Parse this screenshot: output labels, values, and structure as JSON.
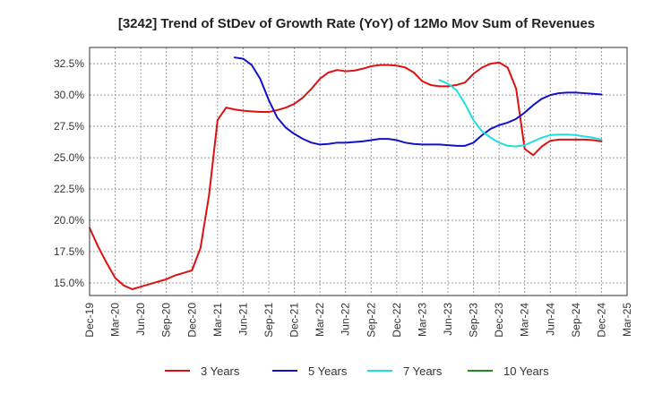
{
  "chart_data": {
    "type": "line",
    "title": "[3242]  Trend of StDev of Growth Rate (YoY) of 12Mo Mov Sum of Revenues",
    "xlabel": "",
    "ylabel": "",
    "ylim": [
      14.0,
      33.8
    ],
    "y_ticks": [
      "15.0%",
      "17.5%",
      "20.0%",
      "22.5%",
      "25.0%",
      "27.5%",
      "30.0%",
      "32.5%"
    ],
    "y_tick_values": [
      15.0,
      17.5,
      20.0,
      22.5,
      25.0,
      27.5,
      30.0,
      32.5
    ],
    "x_ticks": [
      "Dec-19",
      "Mar-20",
      "Jun-20",
      "Sep-20",
      "Dec-20",
      "Mar-21",
      "Jun-21",
      "Sep-21",
      "Dec-21",
      "Mar-22",
      "Jun-22",
      "Sep-22",
      "Dec-22",
      "Mar-23",
      "Jun-23",
      "Sep-23",
      "Dec-23",
      "Mar-24",
      "Jun-24",
      "Sep-24",
      "Dec-24",
      "Mar-25"
    ],
    "grid": true,
    "legend_position": "bottom",
    "colors": {
      "3 Years": "#dd1111",
      "5 Years": "#1111cc",
      "7 Years": "#22dddd",
      "10 Years": "#228822",
      "grid": "#999999",
      "axis": "#333333"
    },
    "series": [
      {
        "name": "3 Years",
        "x": [
          "Dec-19",
          "Jan-20",
          "Feb-20",
          "Mar-20",
          "Apr-20",
          "May-20",
          "Jun-20",
          "Jul-20",
          "Aug-20",
          "Sep-20",
          "Oct-20",
          "Nov-20",
          "Dec-20",
          "Jan-21",
          "Feb-21",
          "Mar-21",
          "Apr-21",
          "May-21",
          "Jun-21",
          "Jul-21",
          "Aug-21",
          "Sep-21",
          "Oct-21",
          "Nov-21",
          "Dec-21",
          "Jan-22",
          "Feb-22",
          "Mar-22",
          "Apr-22",
          "May-22",
          "Jun-22",
          "Jul-22",
          "Aug-22",
          "Sep-22",
          "Oct-22",
          "Nov-22",
          "Dec-22",
          "Jan-23",
          "Feb-23",
          "Mar-23",
          "Apr-23",
          "May-23",
          "Jun-23",
          "Jul-23",
          "Aug-23",
          "Sep-23",
          "Oct-23",
          "Nov-23",
          "Dec-23",
          "Jan-24",
          "Feb-24",
          "Mar-24",
          "Apr-24",
          "May-24",
          "Jun-24",
          "Jul-24",
          "Aug-24",
          "Sep-24",
          "Oct-24",
          "Nov-24",
          "Dec-24"
        ],
        "values": [
          19.4,
          17.9,
          16.6,
          15.4,
          14.8,
          14.5,
          14.7,
          14.9,
          15.1,
          15.3,
          15.6,
          15.8,
          16.0,
          17.8,
          22.0,
          28.0,
          29.0,
          28.85,
          28.75,
          28.7,
          28.65,
          28.65,
          28.8,
          29.0,
          29.3,
          29.8,
          30.5,
          31.3,
          31.8,
          32.0,
          31.9,
          31.95,
          32.1,
          32.3,
          32.4,
          32.4,
          32.35,
          32.2,
          31.8,
          31.1,
          30.8,
          30.7,
          30.7,
          30.8,
          31.0,
          31.7,
          32.2,
          32.5,
          32.6,
          32.2,
          30.5,
          25.7,
          25.2,
          25.9,
          26.35,
          26.45,
          26.45,
          26.45,
          26.45,
          26.4,
          26.3
        ]
      },
      {
        "name": "5 Years",
        "x": [
          "May-21",
          "Jun-21",
          "Jul-21",
          "Aug-21",
          "Sep-21",
          "Oct-21",
          "Nov-21",
          "Dec-21",
          "Jan-22",
          "Feb-22",
          "Mar-22",
          "Apr-22",
          "May-22",
          "Jun-22",
          "Jul-22",
          "Aug-22",
          "Sep-22",
          "Oct-22",
          "Nov-22",
          "Dec-22",
          "Jan-23",
          "Feb-23",
          "Mar-23",
          "Apr-23",
          "May-23",
          "Jun-23",
          "Jul-23",
          "Aug-23",
          "Sep-23",
          "Oct-23",
          "Nov-23",
          "Dec-23",
          "Jan-24",
          "Feb-24",
          "Mar-24",
          "Apr-24",
          "May-24",
          "Jun-24",
          "Jul-24",
          "Aug-24",
          "Sep-24",
          "Oct-24",
          "Nov-24",
          "Dec-24"
        ],
        "values": [
          33.0,
          32.9,
          32.4,
          31.3,
          29.6,
          28.2,
          27.4,
          26.9,
          26.5,
          26.2,
          26.05,
          26.1,
          26.2,
          26.2,
          26.25,
          26.3,
          26.4,
          26.5,
          26.5,
          26.4,
          26.2,
          26.1,
          26.05,
          26.05,
          26.05,
          26.0,
          25.95,
          25.95,
          26.2,
          26.8,
          27.3,
          27.6,
          27.8,
          28.1,
          28.6,
          29.2,
          29.7,
          30.0,
          30.15,
          30.2,
          30.2,
          30.15,
          30.1,
          30.05
        ]
      },
      {
        "name": "7 Years",
        "x": [
          "May-23",
          "Jun-23",
          "Jul-23",
          "Aug-23",
          "Sep-23",
          "Oct-23",
          "Nov-23",
          "Dec-23",
          "Jan-24",
          "Feb-24",
          "Mar-24",
          "Apr-24",
          "May-24",
          "Jun-24",
          "Jul-24",
          "Aug-24",
          "Sep-24",
          "Oct-24",
          "Nov-24",
          "Dec-24"
        ],
        "values": [
          31.2,
          30.9,
          30.4,
          29.3,
          28.0,
          27.1,
          26.6,
          26.2,
          25.95,
          25.9,
          26.0,
          26.3,
          26.6,
          26.8,
          26.85,
          26.85,
          26.8,
          26.7,
          26.6,
          26.45
        ]
      },
      {
        "name": "10 Years",
        "x": [],
        "values": []
      }
    ]
  }
}
